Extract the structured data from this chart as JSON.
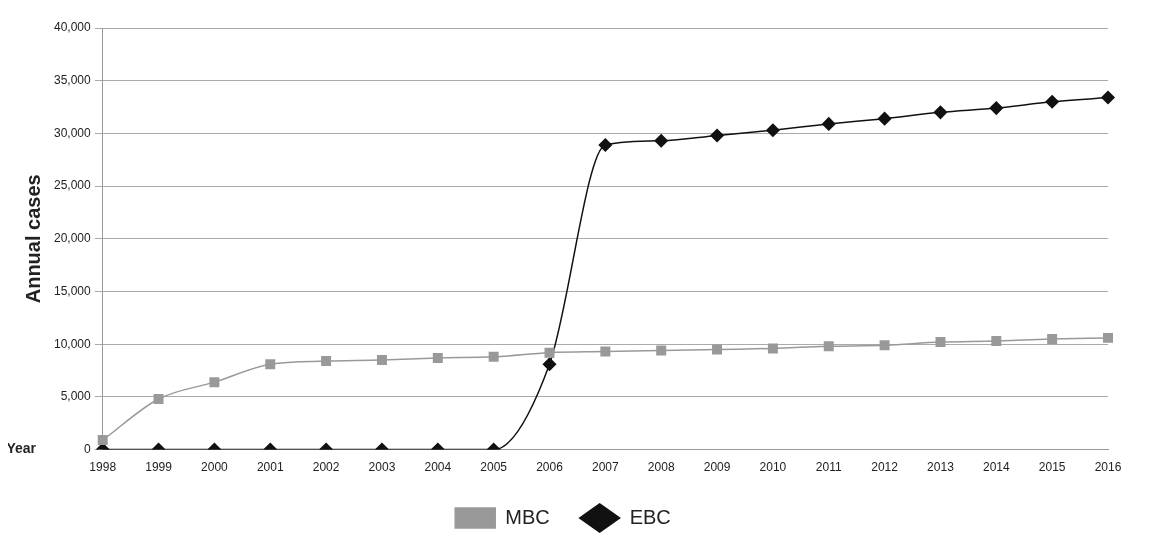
{
  "chart_data": {
    "type": "line",
    "ylabel": "Annual cases",
    "xlabel": "Year",
    "categories": [
      "1998",
      "1999",
      "2000",
      "2001",
      "2002",
      "2003",
      "2004",
      "2005",
      "2006",
      "2007",
      "2008",
      "2009",
      "2010",
      "2011",
      "2012",
      "2013",
      "2014",
      "2015",
      "2016"
    ],
    "series": [
      {
        "name": "MBC",
        "color": "#999999",
        "marker": "square",
        "values": [
          900,
          4800,
          6400,
          8100,
          8400,
          8500,
          8700,
          8800,
          9200,
          9300,
          9400,
          9500,
          9600,
          9800,
          9900,
          10200,
          10300,
          10500,
          10600
        ]
      },
      {
        "name": "EBC",
        "color": "#111111",
        "marker": "diamond",
        "values": [
          0,
          0,
          0,
          0,
          0,
          0,
          0,
          0,
          8100,
          28900,
          29300,
          29800,
          30300,
          30900,
          31400,
          32000,
          32400,
          33000,
          33400
        ]
      }
    ],
    "ylim": [
      0,
      40000
    ],
    "yticks": [
      0,
      {
        "value": 5000,
        "label": "5,000"
      },
      {
        "value": 10000,
        "label": "10,000"
      },
      {
        "value": 15000,
        "label": "15,000"
      },
      {
        "value": 20000,
        "label": "20,000"
      },
      {
        "value": 25000,
        "label": "25,000"
      },
      {
        "value": 30000,
        "label": "30,000"
      },
      {
        "value": 35000,
        "label": "35,000"
      },
      {
        "value": 40000,
        "label": "40,000"
      }
    ],
    "grid": "y",
    "legend": "bottom",
    "line_style": "solid"
  }
}
